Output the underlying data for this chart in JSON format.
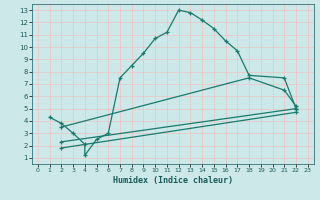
{
  "xlabel": "Humidex (Indice chaleur)",
  "xlim": [
    -0.5,
    23.5
  ],
  "ylim": [
    0.5,
    13.5
  ],
  "xticks": [
    0,
    1,
    2,
    3,
    4,
    5,
    6,
    7,
    8,
    9,
    10,
    11,
    12,
    13,
    14,
    15,
    16,
    17,
    18,
    19,
    20,
    21,
    22,
    23
  ],
  "yticks": [
    1,
    2,
    3,
    4,
    5,
    6,
    7,
    8,
    9,
    10,
    11,
    12,
    13
  ],
  "bg_color": "#cce8e8",
  "grid_color": "#e8c8c8",
  "line_color": "#1a7a6e",
  "curve_x": [
    1,
    2,
    3,
    4,
    4,
    5,
    6,
    7,
    8,
    9,
    10,
    11,
    12,
    13,
    14,
    15,
    16,
    17,
    18,
    21,
    22
  ],
  "curve_y": [
    4.3,
    3.8,
    3.0,
    2.1,
    1.2,
    2.5,
    3.0,
    7.5,
    8.5,
    9.5,
    10.7,
    11.2,
    13.0,
    12.8,
    12.2,
    11.5,
    10.5,
    9.7,
    7.7,
    7.5,
    5.0
  ],
  "line2_x": [
    2,
    18,
    21,
    22
  ],
  "line2_y": [
    3.5,
    7.5,
    6.5,
    5.2
  ],
  "line3_x": [
    2,
    22
  ],
  "line3_y": [
    2.3,
    5.0
  ],
  "line4_x": [
    2,
    22
  ],
  "line4_y": [
    1.8,
    4.7
  ]
}
